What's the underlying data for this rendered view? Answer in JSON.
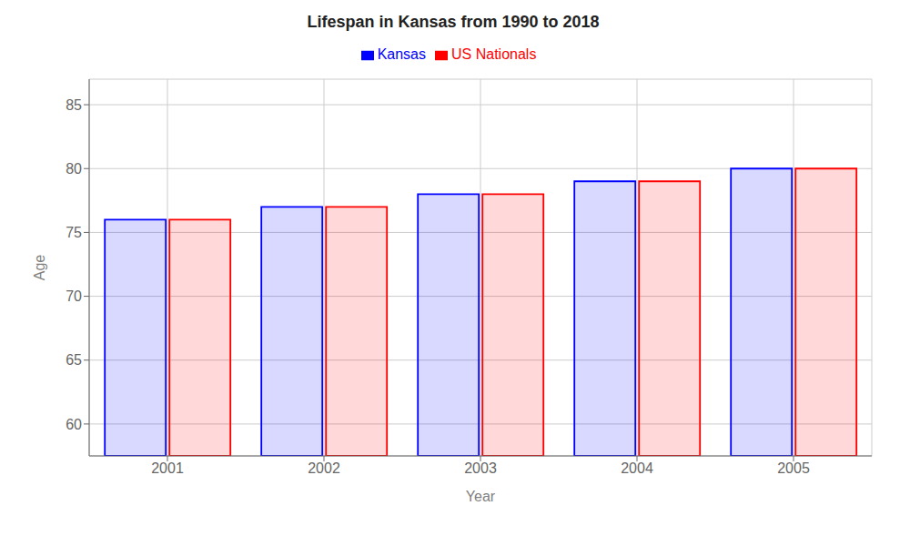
{
  "chart_data": {
    "type": "bar",
    "title": "Lifespan in Kansas from 1990 to 2018",
    "xlabel": "Year",
    "ylabel": "Age",
    "categories": [
      "2001",
      "2002",
      "2003",
      "2004",
      "2005"
    ],
    "series": [
      {
        "name": "Kansas",
        "color": "#0000ff",
        "values": [
          76,
          77,
          78,
          79,
          80
        ]
      },
      {
        "name": "US Nationals",
        "color": "#ff0000",
        "values": [
          76,
          77,
          78,
          79,
          80
        ]
      }
    ],
    "ylim": [
      57.5,
      87
    ],
    "yticks": [
      60,
      65,
      70,
      75,
      80,
      85
    ],
    "grid": true,
    "legend": "top"
  }
}
